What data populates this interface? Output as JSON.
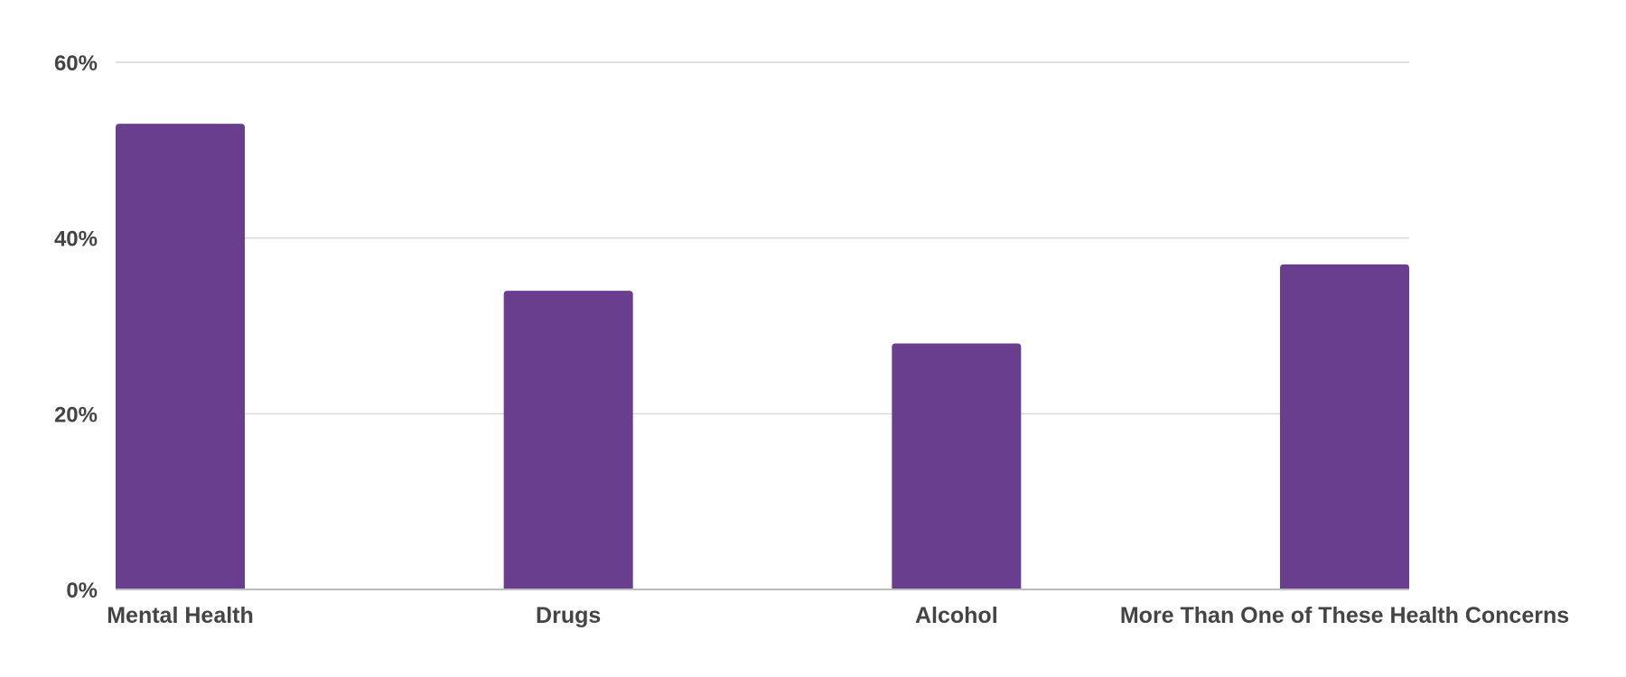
{
  "chart_data": {
    "type": "bar",
    "title": "",
    "xlabel": "",
    "ylabel": "",
    "categories": [
      "Mental Health",
      "Drugs",
      "Alcohol",
      "More Than One of These Health Concerns"
    ],
    "values": [
      53,
      34,
      28,
      37
    ],
    "ylim": [
      0,
      60
    ],
    "yticks": [
      0,
      20,
      40,
      60
    ],
    "ytick_labels": [
      "0%",
      "20%",
      "40%",
      "60%"
    ],
    "grid": true,
    "legend": "none",
    "bar_color": "#6a3e8e"
  }
}
